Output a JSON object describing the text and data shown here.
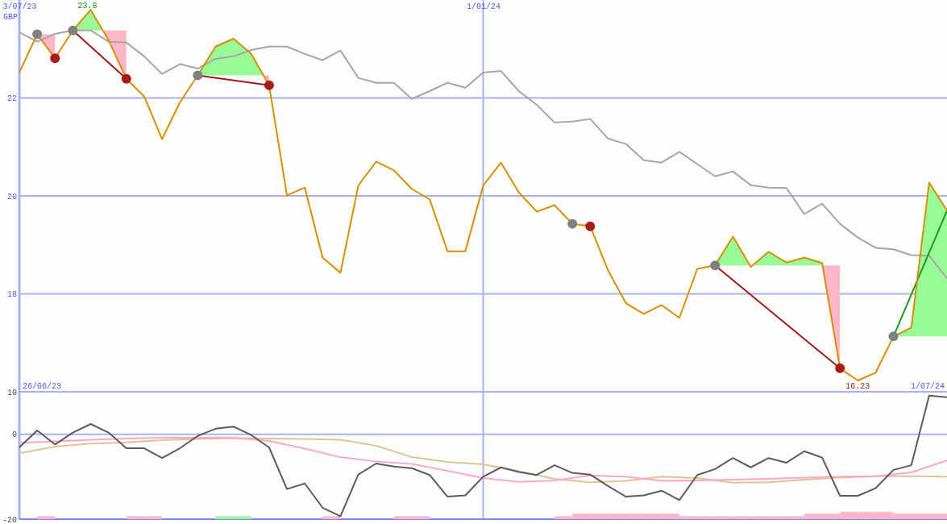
{
  "chart_data": [
    {
      "type": "line",
      "ylabel": "GBP",
      "x": [
        "2023-07-03",
        "2023-07-10",
        "2023-07-17",
        "2023-07-24",
        "2023-07-31",
        "2023-08-07",
        "2023-08-14",
        "2023-08-21",
        "2023-08-28",
        "2023-09-04",
        "2023-09-11",
        "2023-09-18",
        "2023-09-25",
        "2023-10-02",
        "2023-10-09",
        "2023-10-16",
        "2023-10-23",
        "2023-10-30",
        "2023-11-06",
        "2023-11-13",
        "2023-11-20",
        "2023-11-27",
        "2023-12-04",
        "2023-12-11",
        "2023-12-18",
        "2023-12-25",
        "2024-01-01",
        "2024-01-08",
        "2024-01-15",
        "2024-01-22",
        "2024-01-29",
        "2024-02-05",
        "2024-02-12",
        "2024-02-19",
        "2024-02-26",
        "2024-03-04",
        "2024-03-11",
        "2024-03-18",
        "2024-03-25",
        "2024-04-01",
        "2024-04-08",
        "2024-04-15",
        "2024-04-22",
        "2024-04-29",
        "2024-05-06",
        "2024-05-13",
        "2024-05-20",
        "2024-05-27",
        "2024-06-03",
        "2024-06-10",
        "2024-06-17",
        "2024-06-24",
        "2024-07-01"
      ],
      "xlim": [
        "2023-07-03",
        "2024-07-01"
      ],
      "xticks": [
        {
          "value": "2023-07-03",
          "label": "3/07/23"
        },
        {
          "value": "2024-01-01",
          "label": "1/01/24"
        }
      ],
      "ylim": [
        16,
        24
      ],
      "yticks": [
        18,
        20,
        22
      ],
      "grid": true,
      "annotations": [
        "26/06/23",
        "1/07/24",
        {
          "text": "23.8",
          "x": "2023-07-31",
          "y": 23.8
        },
        {
          "text": "16.23",
          "x": "2024-05-27",
          "y": 16.23
        }
      ],
      "series": [
        {
          "color": "#a6a6a6",
          "values": [
            23.34,
            23.15,
            23.31,
            23.38,
            23.38,
            23.15,
            23.13,
            22.85,
            22.49,
            22.69,
            22.6,
            22.8,
            22.85,
            22.98,
            23.05,
            23.05,
            22.9,
            22.77,
            22.97,
            22.41,
            22.31,
            22.31,
            21.98,
            22.14,
            22.31,
            22.21,
            22.52,
            22.55,
            22.14,
            21.86,
            21.5,
            21.52,
            21.57,
            21.17,
            21.06,
            20.73,
            20.68,
            20.9,
            20.65,
            20.4,
            20.5,
            20.22,
            20.17,
            20.16,
            19.63,
            19.84,
            19.43,
            19.15,
            18.94,
            18.91,
            18.79,
            18.78,
            18.32
          ]
        },
        {
          "type": "line",
          "color": "#a01818",
          "x": [
            "2023-07-24",
            "2023-08-14"
          ],
          "values": [
            23.38,
            22.39
          ]
        },
        {
          "type": "line",
          "color": "#a01818",
          "x": [
            "2023-09-11",
            "2023-10-09"
          ],
          "values": [
            22.46,
            22.26
          ]
        },
        {
          "type": "line",
          "color": "#a01818",
          "x": [
            "2024-04-01",
            "2024-05-20"
          ],
          "values": [
            18.58,
            16.48
          ]
        },
        {
          "type": "line",
          "color": "#1e9a1e",
          "x": [
            "2024-06-10",
            "2024-07-01"
          ],
          "values": [
            17.13,
            19.7
          ]
        },
        {
          "color": "#d98e04",
          "values": [
            22.52,
            23.3,
            22.81,
            23.38,
            23.8,
            23.18,
            22.39,
            22.03,
            21.16,
            21.91,
            22.46,
            23.05,
            23.21,
            22.9,
            22.26,
            20.01,
            20.17,
            18.74,
            18.43,
            20.21,
            20.7,
            20.52,
            20.14,
            19.93,
            18.87,
            18.87,
            20.21,
            20.68,
            20.07,
            19.68,
            19.81,
            19.43,
            19.38,
            18.48,
            17.81,
            17.59,
            17.77,
            17.51,
            18.51,
            18.58,
            19.17,
            18.55,
            18.86,
            18.64,
            18.74,
            18.63,
            16.48,
            16.23,
            16.39,
            17.13,
            17.31,
            20.27,
            19.7
          ]
        },
        {
          "type": "scatter",
          "marker": "circle",
          "color": "#808080",
          "x": [
            "2023-07-10",
            "2023-07-24",
            "2023-09-11",
            "2024-02-05",
            "2024-04-01",
            "2024-06-10"
          ],
          "values": [
            23.3,
            23.38,
            22.46,
            19.43,
            18.58,
            17.13
          ]
        },
        {
          "type": "scatter",
          "marker": "circle",
          "color": "#a81c1c",
          "x": [
            "2023-07-17",
            "2023-08-14",
            "2023-10-09",
            "2024-02-12",
            "2024-05-20"
          ],
          "values": [
            22.81,
            22.39,
            22.26,
            19.38,
            16.48
          ]
        }
      ]
    },
    {
      "type": "line",
      "x": [
        "2023-07-03",
        "2023-07-10",
        "2023-07-17",
        "2023-07-24",
        "2023-07-31",
        "2023-08-07",
        "2023-08-14",
        "2023-08-21",
        "2023-08-28",
        "2023-09-04",
        "2023-09-11",
        "2023-09-18",
        "2023-09-25",
        "2023-10-02",
        "2023-10-09",
        "2023-10-16",
        "2023-10-23",
        "2023-10-30",
        "2023-11-06",
        "2023-11-13",
        "2023-11-20",
        "2023-11-27",
        "2023-12-04",
        "2023-12-11",
        "2023-12-18",
        "2023-12-25",
        "2024-01-01",
        "2024-01-08",
        "2024-01-15",
        "2024-01-22",
        "2024-01-29",
        "2024-02-05",
        "2024-02-12",
        "2024-02-19",
        "2024-02-26",
        "2024-03-04",
        "2024-03-11",
        "2024-03-18",
        "2024-03-25",
        "2024-04-01",
        "2024-04-08",
        "2024-04-15",
        "2024-04-22",
        "2024-04-29",
        "2024-05-06",
        "2024-05-13",
        "2024-05-20",
        "2024-05-27",
        "2024-06-03",
        "2024-06-10",
        "2024-06-17",
        "2024-06-24",
        "2024-07-01"
      ],
      "xlim": [
        "2023-07-03",
        "2024-07-01"
      ],
      "xticks": [
        {
          "value": "2023-07-03",
          "label": null
        },
        {
          "value": "2024-01-01",
          "label": null
        }
      ],
      "ylim": [
        -20,
        10
      ],
      "yticks": [
        -20,
        0,
        10
      ],
      "grid": true,
      "tick_labels": "y",
      "series": [
        {
          "type": "bar",
          "colors": [
            "#ffb6c8",
            "#ffb6c8",
            "#ffb6c8",
            "#98fb98",
            "#98fb98",
            "#ffb6c8",
            "#ffb6c8",
            "#ffb6c8",
            "#ffb6c8",
            "#ffb6c8",
            "#ffb6c8",
            "#ffb6c8",
            "#ffb6c8",
            "#ffb6c8",
            "#ffb6c8",
            "#ffb6c8",
            "#ffb6c8",
            "#ffb6c8",
            "#ffb6c8",
            "#ffb6c8",
            "#ffb6c8",
            "#ffb6c8",
            "#ffb6c8",
            "#ffb6c8",
            "#ffb6c8",
            "#ffb6c8",
            "#ffb6c8",
            "#ffb6c8",
            "#ffb6c8",
            "#ffb6c8"
          ],
          "x": [
            "2023-07-13T12:00",
            "2023-08-17T12:00",
            "2023-08-24T12:00",
            "2023-09-21T12:00",
            "2023-09-28T12:00",
            "2023-11-02T12:00",
            "2023-11-30T12:00",
            "2023-12-07T12:00",
            "2024-02-01T12:00",
            "2024-02-08T12:00",
            "2024-02-15T12:00",
            "2024-02-22T12:00",
            "2024-02-29T12:00",
            "2024-03-07T12:00",
            "2024-03-14T12:00",
            "2024-03-21T12:00",
            "2024-03-28T12:00",
            "2024-04-04T12:00",
            "2024-04-11T12:00",
            "2024-04-18T12:00",
            "2024-04-25T12:00",
            "2024-05-02T12:00",
            "2024-05-09T12:00",
            "2024-05-16T12:00",
            "2024-05-23T12:00",
            "2024-05-30T12:00",
            "2024-06-06T12:00",
            "2024-06-13T12:00",
            "2024-06-20T12:00",
            "2024-06-27T12:00"
          ],
          "values": [
            0.7,
            0.7,
            0.7,
            0.7,
            0.7,
            0.7,
            0.7,
            0.7,
            0.7,
            1.3,
            1.3,
            1.3,
            1.3,
            1.3,
            1.3,
            0.7,
            0.7,
            0.7,
            0.7,
            0.7,
            0.7,
            0.7,
            1.3,
            1.3,
            1.7,
            1.7,
            1.7,
            1.3,
            1.3,
            1.3
          ],
          "base": [
            -20,
            -20,
            -20,
            -20,
            -20,
            -20,
            -20,
            -20,
            -20,
            -20,
            -20,
            -20,
            -20,
            -20,
            -20,
            -20,
            -20,
            -20,
            -20,
            -20,
            -20,
            -20,
            -20,
            -20,
            -20,
            -20,
            -20,
            -20,
            -20,
            -20
          ]
        },
        {
          "color": "#e0c394",
          "x": [
            "2023-07-03",
            "2023-07-17",
            "2023-07-31",
            "2023-08-14",
            "2023-08-28",
            "2023-09-11",
            "2023-09-25",
            "2023-10-09",
            "2023-10-23",
            "2023-11-06",
            "2023-11-20",
            "2023-12-04",
            "2023-12-18",
            "2024-01-01",
            "2024-01-15",
            "2024-01-29",
            "2024-02-12",
            "2024-02-26",
            "2024-03-11",
            "2024-03-25",
            "2024-04-08",
            "2024-04-22",
            "2024-05-06",
            "2024-05-20",
            "2024-06-03",
            "2024-06-17",
            "2024-07-01"
          ],
          "values": [
            -4.5,
            -2.9,
            -2.2,
            -1.9,
            -1.4,
            -1.1,
            -0.9,
            -1.0,
            -1.1,
            -1.3,
            -2.7,
            -5.4,
            -6.5,
            -7.1,
            -8.7,
            -10.5,
            -11.3,
            -11.0,
            -10.0,
            -10.3,
            -11.4,
            -11.3,
            -10.7,
            -10.2,
            -9.9,
            -9.9,
            -10.0
          ]
        },
        {
          "color": "#ffa6c9",
          "x": [
            "2023-07-03",
            "2023-07-17",
            "2023-07-31",
            "2023-08-14",
            "2023-08-28",
            "2023-09-11",
            "2023-09-25",
            "2023-10-09",
            "2023-10-23",
            "2023-11-06",
            "2023-11-20",
            "2023-12-04",
            "2023-12-18",
            "2024-01-01",
            "2024-01-15",
            "2024-01-29",
            "2024-02-12",
            "2024-02-26",
            "2024-03-11",
            "2024-03-25",
            "2024-04-08",
            "2024-04-22",
            "2024-05-06",
            "2024-05-20",
            "2024-06-03",
            "2024-06-17",
            "2024-07-01"
          ],
          "values": [
            -2.0,
            -1.7,
            -1.3,
            -1.0,
            -0.8,
            -0.8,
            -0.8,
            -1.6,
            -3.4,
            -5.4,
            -6.4,
            -7.0,
            -8.6,
            -10.3,
            -11.2,
            -10.9,
            -9.7,
            -10.0,
            -11.0,
            -10.9,
            -10.7,
            -10.5,
            -10.2,
            -10.0,
            -9.9,
            -9.0,
            -6.2
          ]
        },
        {
          "color": "#5c5c5c",
          "values": [
            -3.1,
            0.9,
            -2.4,
            0.4,
            2.4,
            0.4,
            -3.3,
            -3.3,
            -5.6,
            -3.3,
            -0.4,
            1.3,
            1.8,
            -0.2,
            -3.1,
            -12.9,
            -11.6,
            -17.3,
            -19.3,
            -9.5,
            -6.9,
            -7.6,
            -8.0,
            -9.6,
            -14.7,
            -14.4,
            -10.0,
            -7.8,
            -8.9,
            -9.6,
            -7.3,
            -9.1,
            -9.5,
            -12.2,
            -14.7,
            -14.4,
            -13.3,
            -15.5,
            -9.6,
            -8.2,
            -5.6,
            -7.8,
            -5.6,
            -6.7,
            -4.0,
            -5.5,
            -14.5,
            -14.5,
            -12.7,
            -8.4,
            -7.3,
            9.1,
            8.7
          ]
        }
      ]
    }
  ]
}
